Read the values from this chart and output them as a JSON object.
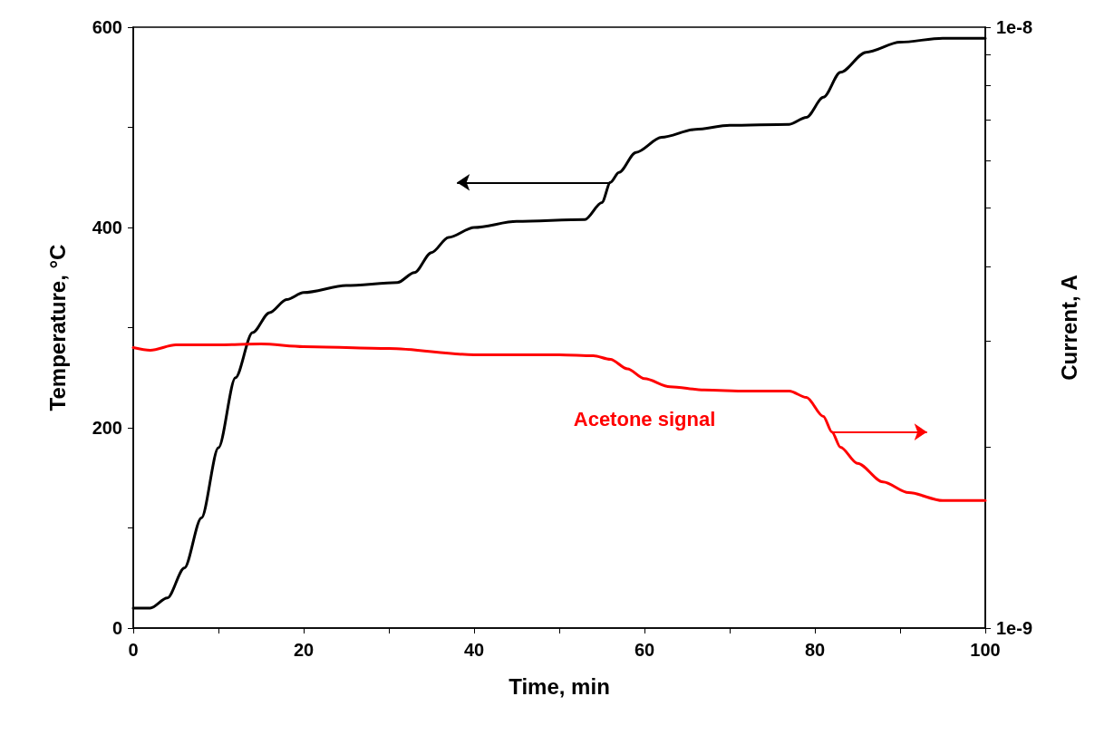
{
  "chart_data": {
    "type": "line",
    "xlabel": "Time, min",
    "ylabel": "Temperature, °C",
    "y2label": "Current, A",
    "xlim": [
      0,
      100
    ],
    "xticks": [
      0,
      {
        "value": 10,
        "label": null
      },
      20,
      {
        "value": 30,
        "label": null
      },
      40,
      {
        "value": 50,
        "label": null
      },
      60,
      {
        "value": 70,
        "label": null
      },
      80,
      {
        "value": 90,
        "label": null
      },
      100
    ],
    "ylim": [
      0,
      600
    ],
    "yticks": [
      0,
      {
        "value": 100,
        "label": null
      },
      200,
      {
        "value": 300,
        "label": null
      },
      400,
      {
        "value": 500,
        "label": null
      },
      600
    ],
    "y2lim": [
      1e-09,
      1e-08
    ],
    "y2ticks": [
      {
        "value": 1e-09,
        "label": "1e-9"
      },
      {
        "value": 2e-09,
        "label": null
      },
      {
        "value": 3e-09,
        "label": null
      },
      {
        "value": 4e-09,
        "label": null
      },
      {
        "value": 5e-09,
        "label": null
      },
      {
        "value": 6e-09,
        "label": null
      },
      {
        "value": 7e-09,
        "label": null
      },
      {
        "value": 8e-09,
        "label": null
      },
      {
        "value": 9e-09,
        "label": null
      },
      {
        "value": 1e-08,
        "label": "1e-8"
      }
    ],
    "log": "y2",
    "grid": false,
    "legend": false,
    "marker": "none",
    "line_style": "solid",
    "series": [
      {
        "color": "#000000",
        "axis": "y",
        "x": [
          0,
          2,
          4,
          6,
          8,
          10,
          12,
          14,
          16,
          18,
          20,
          25,
          31,
          33,
          35,
          37,
          40,
          45,
          53,
          55,
          56,
          57,
          59,
          62,
          66,
          70,
          77,
          79,
          81,
          83,
          86,
          90,
          95,
          100
        ],
        "values": [
          20,
          20,
          30,
          60,
          110,
          180,
          250,
          295,
          315,
          328,
          335,
          342,
          345,
          355,
          375,
          390,
          400,
          406,
          408,
          425,
          445,
          455,
          475,
          490,
          498,
          502,
          503,
          510,
          530,
          555,
          575,
          585,
          589,
          589
        ]
      },
      {
        "name": "Acetone signal",
        "color": "#ff0000",
        "axis": "y2",
        "x": [
          0,
          2,
          5,
          10,
          15,
          20,
          30,
          40,
          50,
          54,
          56,
          58,
          60,
          63,
          67,
          72,
          77,
          79,
          81,
          82,
          83,
          85,
          88,
          91,
          95,
          100
        ],
        "values": [
          2.93e-09,
          2.9e-09,
          2.96e-09,
          2.96e-09,
          2.97e-09,
          2.94e-09,
          2.92e-09,
          2.85e-09,
          2.85e-09,
          2.84e-09,
          2.8e-09,
          2.7e-09,
          2.6e-09,
          2.52e-09,
          2.49e-09,
          2.48e-09,
          2.48e-09,
          2.42e-09,
          2.25e-09,
          2.12e-09,
          2e-09,
          1.88e-09,
          1.75e-09,
          1.68e-09,
          1.63e-09,
          1.63e-09
        ]
      }
    ]
  }
}
